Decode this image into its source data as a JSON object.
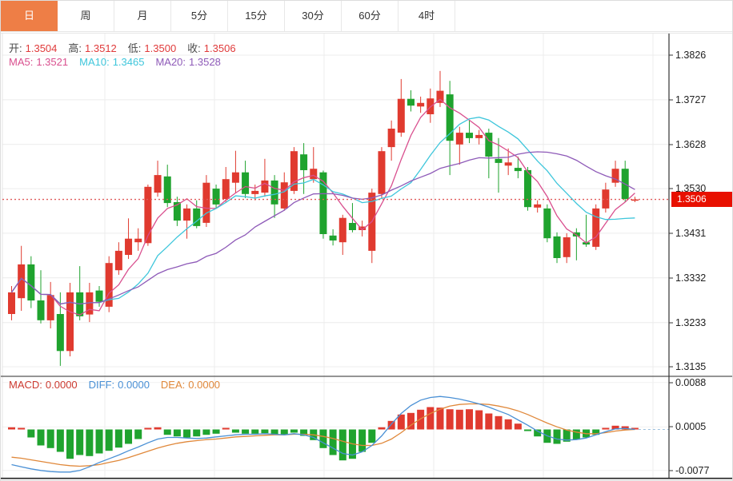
{
  "tab_bar": {
    "tabs": [
      {
        "label": "日",
        "active": true
      },
      {
        "label": "周",
        "active": false
      },
      {
        "label": "月",
        "active": false
      },
      {
        "label": "5分",
        "active": false
      },
      {
        "label": "15分",
        "active": false
      },
      {
        "label": "30分",
        "active": false
      },
      {
        "label": "60分",
        "active": false
      },
      {
        "label": "4时",
        "active": false
      }
    ]
  },
  "legend": {
    "open_label": "开:",
    "open_value": "1.3504",
    "high_label": "高:",
    "high_value": "1.3512",
    "low_label": "低:",
    "low_value": "1.3500",
    "close_label": "收:",
    "close_value": "1.3506"
  },
  "ma_legend": {
    "ma5_label": "MA5:",
    "ma5_value": "1.3521",
    "ma10_label": "MA10:",
    "ma10_value": "1.3465",
    "ma20_label": "MA20:",
    "ma20_value": "1.3528"
  },
  "macd_legend": {
    "macd_label": "MACD:",
    "macd_value": "0.0000",
    "diff_label": "DIFF:",
    "diff_value": "0.0000",
    "dea_label": "DEA:",
    "dea_value": "0.0000"
  },
  "price_badge": {
    "value": "1.3506"
  },
  "colors": {
    "tab_active_bg": "#ee7e46",
    "ohlc_label": "#4a4a4a",
    "ohlc_value": "#e03a3a",
    "ma5": "#d94f8e",
    "ma10": "#3ec6db",
    "ma20": "#8e5ab8",
    "macd_label": "#cc3a30",
    "diff": "#4a90d5",
    "dea": "#e0883a",
    "candle_up": "#e03a2f",
    "candle_down": "#1fa32e",
    "current_price_line": "#e05a5a",
    "badge_bg": "#e81000",
    "grid": "#ececec",
    "axis_text": "#222222",
    "axis_line": "#333333"
  },
  "chart_data": {
    "type": "candlestick",
    "panels": [
      "price",
      "macd"
    ],
    "title": "",
    "ylim": [
      1.3135,
      1.3826
    ],
    "price_axis_ticks": [
      1.3826,
      1.3727,
      1.3628,
      1.353,
      1.3431,
      1.3332,
      1.3233,
      1.3135
    ],
    "current_price": 1.3506,
    "ma_periods": [
      5,
      10,
      20
    ],
    "candles": [
      [
        1.3252,
        1.3314,
        1.3238,
        1.33
      ],
      [
        1.3287,
        1.3403,
        1.3259,
        1.3362
      ],
      [
        1.3362,
        1.338,
        1.3265,
        1.3282
      ],
      [
        1.3282,
        1.3349,
        1.3231,
        1.3238
      ],
      [
        1.3238,
        1.3323,
        1.322,
        1.3294
      ],
      [
        1.3252,
        1.33,
        1.3137,
        1.317
      ],
      [
        1.317,
        1.3321,
        1.3158,
        1.33
      ],
      [
        1.33,
        1.3358,
        1.3238,
        1.3247
      ],
      [
        1.3251,
        1.3321,
        1.3234,
        1.33
      ],
      [
        1.3304,
        1.3314,
        1.3268,
        1.3279
      ],
      [
        1.3268,
        1.338,
        1.3256,
        1.3365
      ],
      [
        1.3349,
        1.3411,
        1.3339,
        1.3392
      ],
      [
        1.3383,
        1.3464,
        1.3374,
        1.3419
      ],
      [
        1.3411,
        1.3442,
        1.3392,
        1.3419
      ],
      [
        1.3409,
        1.3539,
        1.3403,
        1.3534
      ],
      [
        1.3521,
        1.3592,
        1.3512,
        1.356
      ],
      [
        1.3557,
        1.3583,
        1.3489,
        1.3498
      ],
      [
        1.35,
        1.3512,
        1.3447,
        1.3459
      ],
      [
        1.3459,
        1.3495,
        1.3419,
        1.3486
      ],
      [
        1.3486,
        1.3504,
        1.3442,
        1.3447
      ],
      [
        1.3454,
        1.356,
        1.3445,
        1.3543
      ],
      [
        1.353,
        1.3539,
        1.3486,
        1.3495
      ],
      [
        1.3507,
        1.3578,
        1.35,
        1.3551
      ],
      [
        1.3543,
        1.3614,
        1.3521,
        1.3566
      ],
      [
        1.3566,
        1.3592,
        1.3509,
        1.3518
      ],
      [
        1.3518,
        1.3539,
        1.3504,
        1.3525
      ],
      [
        1.3521,
        1.3596,
        1.3512,
        1.3548
      ],
      [
        1.3548,
        1.356,
        1.3465,
        1.3495
      ],
      [
        1.3486,
        1.3566,
        1.3481,
        1.3544
      ],
      [
        1.3525,
        1.3622,
        1.3518,
        1.3613
      ],
      [
        1.3606,
        1.3631,
        1.3518,
        1.3571
      ],
      [
        1.3551,
        1.3622,
        1.3543,
        1.3574
      ],
      [
        1.3566,
        1.357,
        1.3419,
        1.3429
      ],
      [
        1.3426,
        1.344,
        1.3404,
        1.3415
      ],
      [
        1.3411,
        1.3472,
        1.3383,
        1.3465
      ],
      [
        1.3454,
        1.3498,
        1.3433,
        1.3438
      ],
      [
        1.3438,
        1.3459,
        1.3424,
        1.3446
      ],
      [
        1.3392,
        1.353,
        1.3365,
        1.3521
      ],
      [
        1.3518,
        1.3622,
        1.3507,
        1.3613
      ],
      [
        1.3622,
        1.3681,
        1.3592,
        1.3663
      ],
      [
        1.3654,
        1.3773,
        1.3645,
        1.3729
      ],
      [
        1.3729,
        1.3748,
        1.3701,
        1.3714
      ],
      [
        1.3712,
        1.3734,
        1.3698,
        1.372
      ],
      [
        1.3695,
        1.3752,
        1.3676,
        1.373
      ],
      [
        1.372,
        1.3791,
        1.3711,
        1.3747
      ],
      [
        1.3739,
        1.3769,
        1.356,
        1.3636
      ],
      [
        1.3628,
        1.3667,
        1.3583,
        1.3654
      ],
      [
        1.3654,
        1.3681,
        1.3631,
        1.3642
      ],
      [
        1.3642,
        1.366,
        1.3628,
        1.3649
      ],
      [
        1.3654,
        1.3663,
        1.3553,
        1.3601
      ],
      [
        1.3596,
        1.3642,
        1.3521,
        1.3587
      ],
      [
        1.3581,
        1.3619,
        1.356,
        1.3588
      ],
      [
        1.3576,
        1.3601,
        1.3553,
        1.3569
      ],
      [
        1.3571,
        1.3578,
        1.3481,
        1.3489
      ],
      [
        1.3488,
        1.3504,
        1.3477,
        1.3495
      ],
      [
        1.3486,
        1.3495,
        1.3411,
        1.342
      ],
      [
        1.3424,
        1.3433,
        1.3365,
        1.3376
      ],
      [
        1.3378,
        1.3431,
        1.3365,
        1.3422
      ],
      [
        1.3433,
        1.3442,
        1.3371,
        1.3424
      ],
      [
        1.3411,
        1.3472,
        1.3401,
        1.3406
      ],
      [
        1.3401,
        1.3495,
        1.3394,
        1.3486
      ],
      [
        1.3486,
        1.3543,
        1.3477,
        1.3528
      ],
      [
        1.3543,
        1.3592,
        1.3534,
        1.3574
      ],
      [
        1.3574,
        1.3592,
        1.35,
        1.3507
      ],
      [
        1.3504,
        1.3512,
        1.35,
        1.3506
      ]
    ],
    "macd_axis_ticks": [
      0.0088,
      0.0005,
      -0.0077
    ],
    "macd_histogram": [
      0.0004,
      0.0002,
      -0.0015,
      -0.003,
      -0.0035,
      -0.0042,
      -0.0055,
      -0.0048,
      -0.005,
      -0.0045,
      -0.004,
      -0.0034,
      -0.0027,
      -0.0018,
      0.0003,
      0.0004,
      -0.001,
      -0.0013,
      -0.0015,
      -0.0013,
      -0.001,
      -0.0008,
      0.0003,
      -0.0006,
      -0.0008,
      -0.0008,
      -0.0007,
      -0.0009,
      -0.001,
      -0.0006,
      -0.0012,
      -0.002,
      -0.0035,
      -0.0048,
      -0.0058,
      -0.0055,
      -0.0042,
      -0.0025,
      0.0004,
      0.0016,
      0.0028,
      0.0031,
      0.0037,
      0.0042,
      0.0041,
      0.0038,
      0.0037,
      0.0038,
      0.0036,
      0.003,
      0.0025,
      0.0019,
      0.0011,
      -0.0003,
      -0.0013,
      -0.0025,
      -0.0027,
      -0.0023,
      -0.0019,
      -0.0015,
      -0.001,
      0.0003,
      0.0007,
      0.0006,
      0.0001
    ],
    "diff_line": [
      -0.0066,
      -0.007,
      -0.0074,
      -0.0077,
      -0.0079,
      -0.008,
      -0.008,
      -0.0077,
      -0.007,
      -0.0062,
      -0.0055,
      -0.0048,
      -0.004,
      -0.0033,
      -0.0025,
      -0.0018,
      -0.0015,
      -0.0015,
      -0.0016,
      -0.0017,
      -0.0016,
      -0.0014,
      -0.0012,
      -0.001,
      -0.0009,
      -0.0009,
      -0.0008,
      -0.0009,
      -0.001,
      -0.0008,
      -0.001,
      -0.0015,
      -0.0025,
      -0.0035,
      -0.0045,
      -0.0048,
      -0.0042,
      -0.003,
      -0.0012,
      0.001,
      0.003,
      0.0045,
      0.0055,
      0.006,
      0.0062,
      0.006,
      0.0057,
      0.0053,
      0.0048,
      0.0042,
      0.0035,
      0.0028,
      0.0018,
      0.0008,
      -0.0003,
      -0.0012,
      -0.0018,
      -0.002,
      -0.0019,
      -0.0016,
      -0.001,
      -0.0004,
      0.0001,
      0.0002,
      0.0
    ],
    "dea_line": [
      -0.0052,
      -0.0054,
      -0.0057,
      -0.006,
      -0.0063,
      -0.0066,
      -0.0068,
      -0.0069,
      -0.0068,
      -0.0066,
      -0.0062,
      -0.0058,
      -0.0053,
      -0.0047,
      -0.0041,
      -0.0035,
      -0.003,
      -0.0026,
      -0.0023,
      -0.0021,
      -0.0019,
      -0.0018,
      -0.0016,
      -0.0014,
      -0.0013,
      -0.0012,
      -0.0011,
      -0.001,
      -0.001,
      -0.0009,
      -0.0009,
      -0.001,
      -0.0013,
      -0.0017,
      -0.0022,
      -0.0027,
      -0.003,
      -0.003,
      -0.0026,
      -0.0018,
      -0.0006,
      0.0008,
      0.002,
      0.003,
      0.0038,
      0.0044,
      0.0047,
      0.0048,
      0.0048,
      0.0047,
      0.0044,
      0.004,
      0.0035,
      0.0028,
      0.002,
      0.0012,
      0.0005,
      -0.0001,
      -0.0005,
      -0.0008,
      -0.0008,
      -0.0006,
      -0.0003,
      -0.0001,
      0.0
    ]
  }
}
